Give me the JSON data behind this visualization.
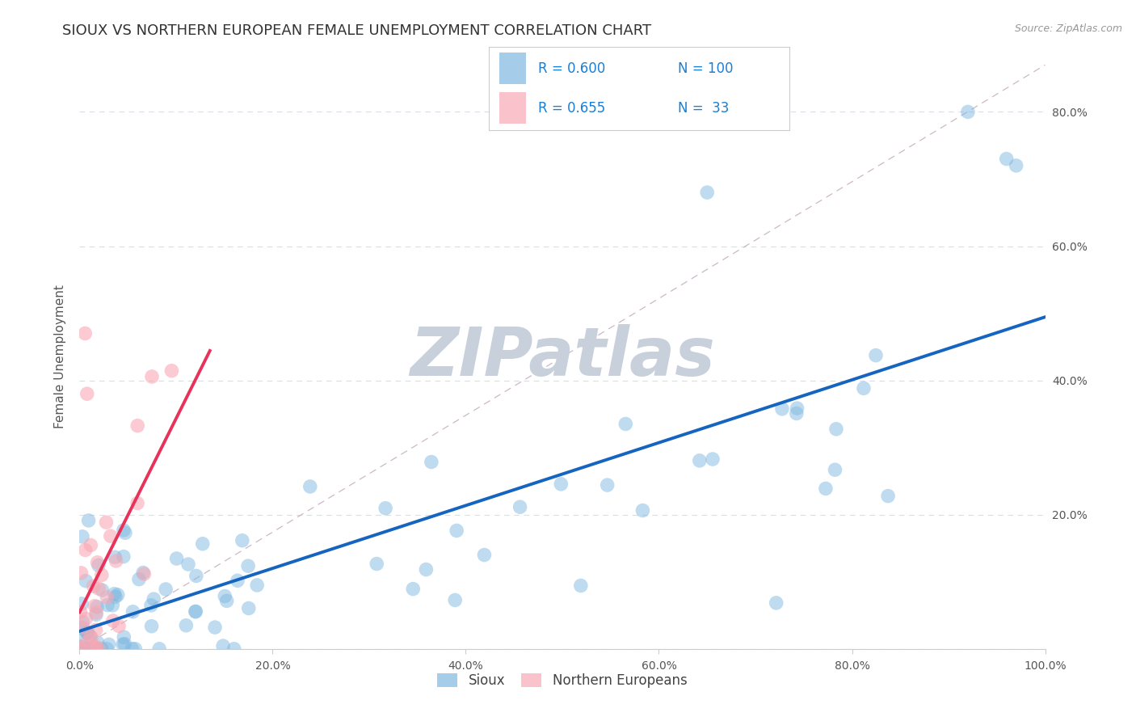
{
  "title": "SIOUX VS NORTHERN EUROPEAN FEMALE UNEMPLOYMENT CORRELATION CHART",
  "source_text": "Source: ZipAtlas.com",
  "ylabel": "Female Unemployment",
  "xlim": [
    0,
    1.0
  ],
  "ylim": [
    0,
    0.87
  ],
  "xtick_vals": [
    0.0,
    0.2,
    0.4,
    0.6,
    0.8,
    1.0
  ],
  "xtick_labels": [
    "0.0%",
    "20.0%",
    "40.0%",
    "60.0%",
    "80.0%",
    "100.0%"
  ],
  "ytick_vals": [
    0.0,
    0.2,
    0.4,
    0.6,
    0.8
  ],
  "ytick_labels": [
    "",
    "20.0%",
    "40.0%",
    "60.0%",
    "80.0%"
  ],
  "background_color": "#ffffff",
  "grid_color": "#d8dde8",
  "sioux_color": "#7fb8e0",
  "northern_color": "#f9a8b4",
  "sioux_line_color": "#1565C0",
  "northern_line_color": "#e8325a",
  "ref_line_color": "#ccb8c8",
  "watermark_text": "ZIPatlas",
  "watermark_color": "#c8d0dc",
  "legend_r1": "R = 0.600",
  "legend_n1": "N = 100",
  "legend_r2": "R = 0.655",
  "legend_n2": "N =  33",
  "legend_val_color": "#1a7fd4",
  "bottom_legend1": "Sioux",
  "bottom_legend2": "Northern Europeans",
  "title_fontsize": 13,
  "tick_fontsize": 10,
  "ylabel_fontsize": 11,
  "source_fontsize": 9,
  "legend_fontsize": 12,
  "watermark_fontsize": 60
}
